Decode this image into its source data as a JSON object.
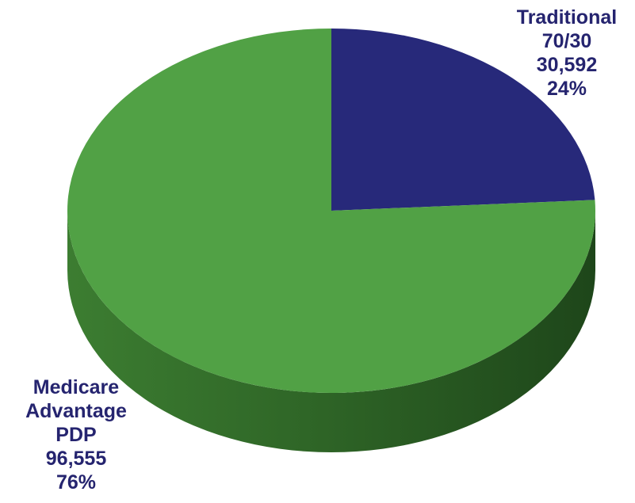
{
  "chart_data": {
    "type": "pie",
    "style": "3d",
    "slices": [
      {
        "label_lines": [
          "Traditional",
          "70/30"
        ],
        "value": 30592,
        "value_text": "30,592",
        "percent_text": "24%",
        "color": "#27297a",
        "side_color": "#171a55"
      },
      {
        "label_lines": [
          "Medicare",
          "Advantage",
          "PDP"
        ],
        "value": 96555,
        "value_text": "96,555",
        "percent_text": "76%",
        "color": "#51a145",
        "side_color": "#3a7a30"
      }
    ],
    "label_color": "#25246f"
  }
}
